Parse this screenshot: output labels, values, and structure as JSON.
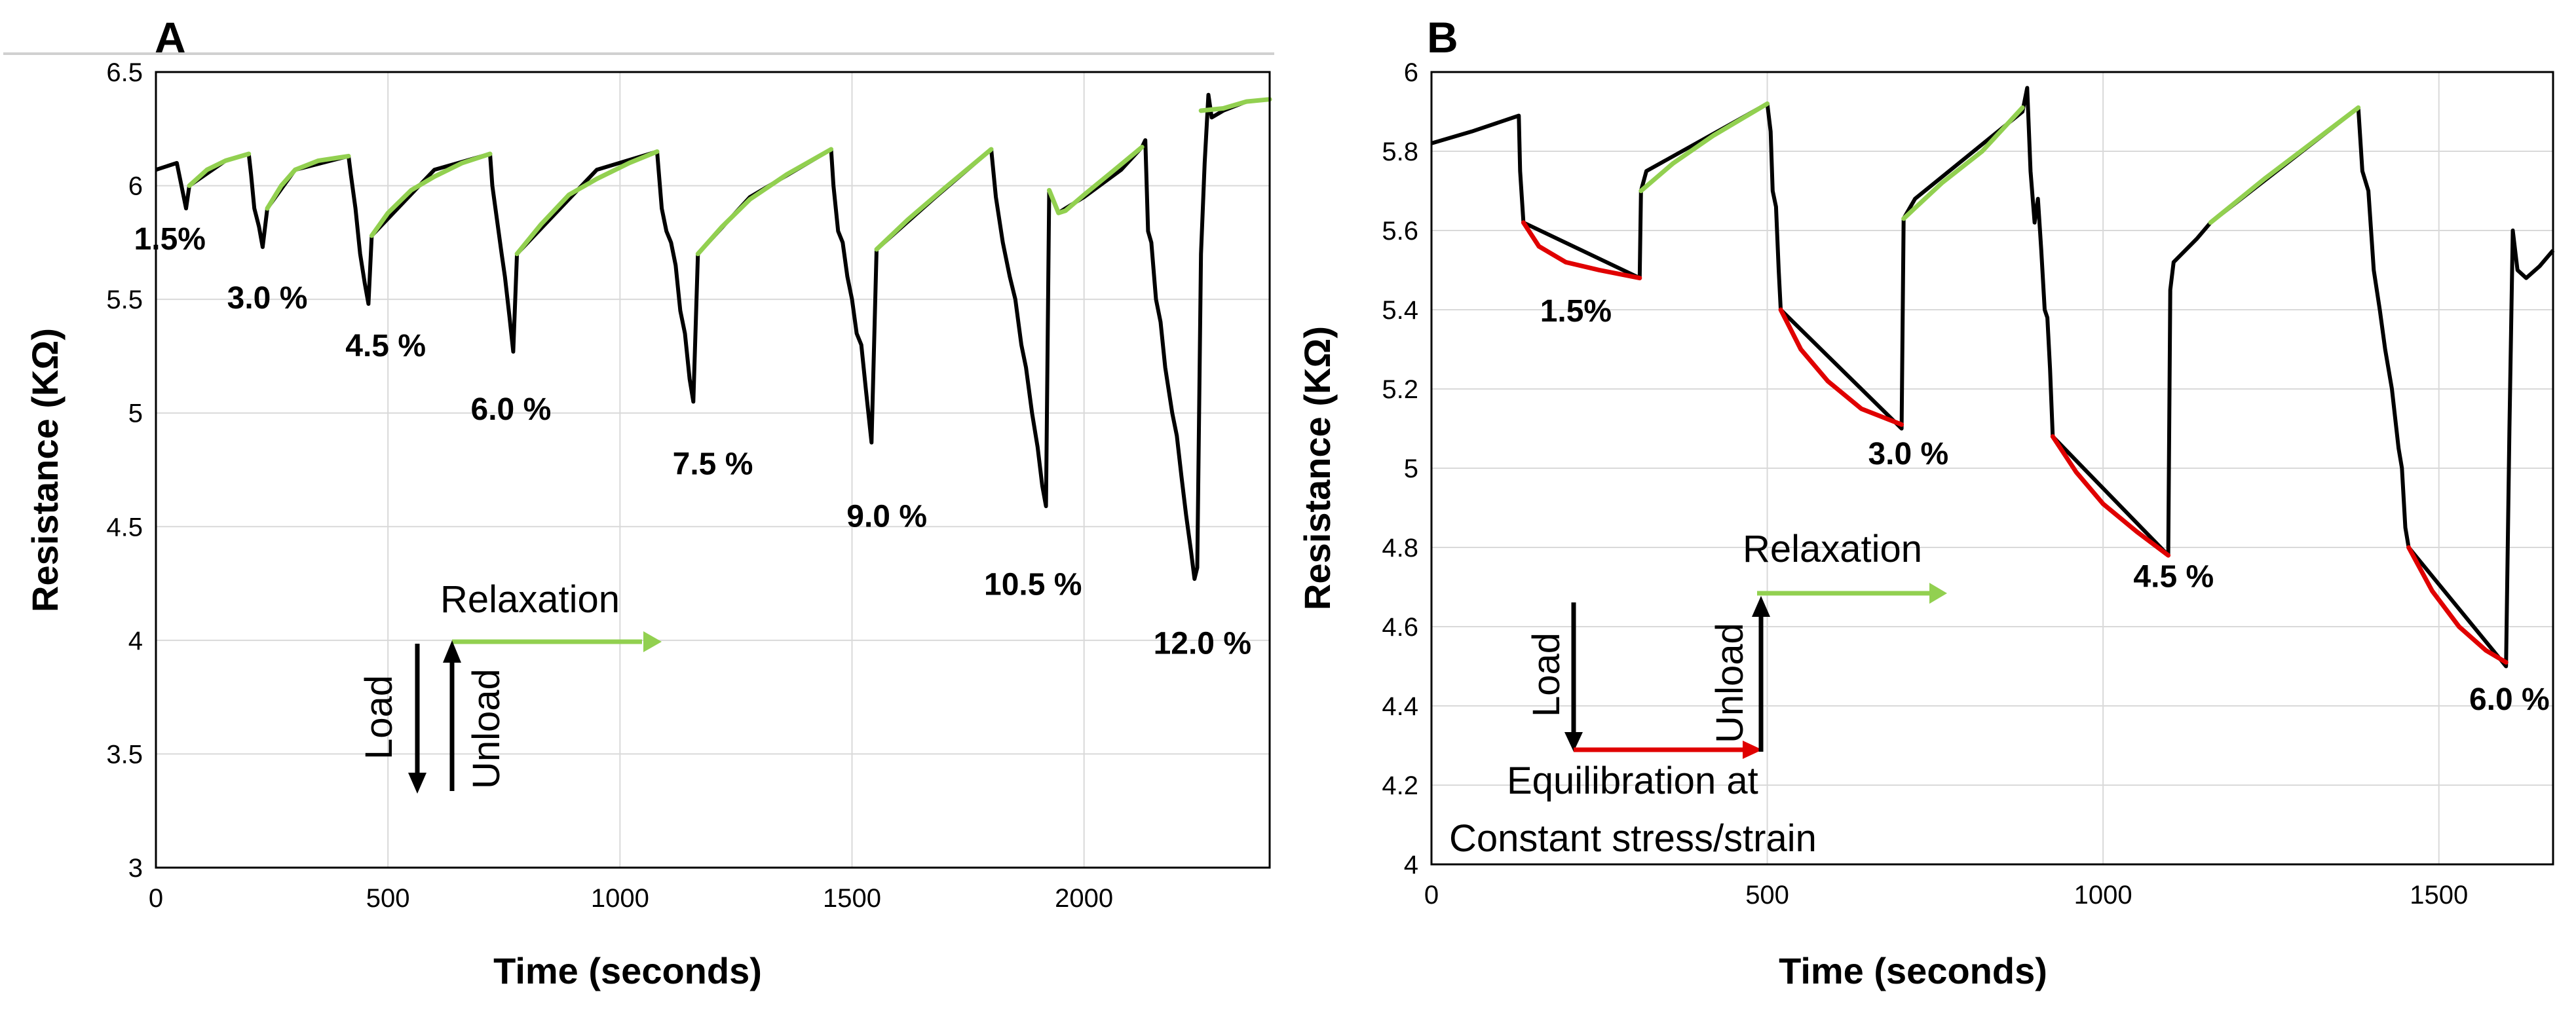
{
  "colors": {
    "load_curve": "#000000",
    "relaxation": "#92D050",
    "equilibration": "#E00000",
    "grid": "#D9D9D9"
  },
  "chart_data": [
    {
      "type": "line",
      "panel_label": "A",
      "xlabel": "Time (seconds)",
      "ylabel": "Resistance (KΩ)",
      "xlim": [
        0,
        2400
      ],
      "ylim": [
        3,
        6.5
      ],
      "x_ticks": [
        0,
        500,
        1000,
        1500,
        2000
      ],
      "y_ticks": [
        "3",
        "3.5",
        "4",
        "4.5",
        "5",
        "5.5",
        "6",
        "6.5"
      ],
      "y_tick_values": [
        3,
        3.5,
        4,
        4.5,
        5,
        5.5,
        6,
        6.5
      ],
      "series": [
        {
          "name": "Resistance",
          "role": "load_unload",
          "points": [
            [
              0,
              6.07
            ],
            [
              45,
              6.1
            ],
            [
              55,
              6.0
            ],
            [
              65,
              5.9
            ],
            [
              72,
              6.0
            ],
            [
              150,
              6.11
            ],
            [
              200,
              6.14
            ],
            [
              205,
              6.05
            ],
            [
              212,
              5.9
            ],
            [
              222,
              5.82
            ],
            [
              230,
              5.73
            ],
            [
              240,
              5.9
            ],
            [
              300,
              6.07
            ],
            [
              415,
              6.13
            ],
            [
              420,
              6.05
            ],
            [
              430,
              5.9
            ],
            [
              440,
              5.7
            ],
            [
              450,
              5.57
            ],
            [
              458,
              5.48
            ],
            [
              465,
              5.78
            ],
            [
              600,
              6.07
            ],
            [
              720,
              6.14
            ],
            [
              725,
              6.0
            ],
            [
              735,
              5.85
            ],
            [
              745,
              5.7
            ],
            [
              752,
              5.6
            ],
            [
              762,
              5.42
            ],
            [
              770,
              5.27
            ],
            [
              778,
              5.7
            ],
            [
              950,
              6.07
            ],
            [
              1080,
              6.15
            ],
            [
              1090,
              5.9
            ],
            [
              1100,
              5.8
            ],
            [
              1110,
              5.75
            ],
            [
              1120,
              5.65
            ],
            [
              1130,
              5.45
            ],
            [
              1140,
              5.35
            ],
            [
              1150,
              5.15
            ],
            [
              1158,
              5.05
            ],
            [
              1168,
              5.7
            ],
            [
              1280,
              5.95
            ],
            [
              1455,
              6.16
            ],
            [
              1460,
              6.0
            ],
            [
              1470,
              5.8
            ],
            [
              1480,
              5.75
            ],
            [
              1490,
              5.6
            ],
            [
              1500,
              5.5
            ],
            [
              1510,
              5.35
            ],
            [
              1520,
              5.3
            ],
            [
              1530,
              5.1
            ],
            [
              1542,
              4.87
            ],
            [
              1553,
              5.72
            ],
            [
              1680,
              5.95
            ],
            [
              1800,
              6.16
            ],
            [
              1810,
              5.95
            ],
            [
              1825,
              5.75
            ],
            [
              1840,
              5.6
            ],
            [
              1852,
              5.5
            ],
            [
              1865,
              5.3
            ],
            [
              1875,
              5.2
            ],
            [
              1888,
              5.0
            ],
            [
              1900,
              4.85
            ],
            [
              1910,
              4.68
            ],
            [
              1918,
              4.59
            ],
            [
              1925,
              5.98
            ],
            [
              1945,
              5.88
            ],
            [
              1960,
              5.9
            ],
            [
              2000,
              5.95
            ],
            [
              2080,
              6.07
            ],
            [
              2125,
              6.17
            ],
            [
              2132,
              6.2
            ],
            [
              2138,
              5.8
            ],
            [
              2145,
              5.75
            ],
            [
              2155,
              5.5
            ],
            [
              2165,
              5.4
            ],
            [
              2175,
              5.2
            ],
            [
              2190,
              5.0
            ],
            [
              2200,
              4.9
            ],
            [
              2210,
              4.72
            ],
            [
              2220,
              4.55
            ],
            [
              2230,
              4.4
            ],
            [
              2238,
              4.27
            ],
            [
              2244,
              4.32
            ],
            [
              2252,
              5.7
            ],
            [
              2260,
              6.1
            ],
            [
              2268,
              6.4
            ],
            [
              2275,
              6.3
            ],
            [
              2300,
              6.33
            ],
            [
              2350,
              6.37
            ],
            [
              2400,
              6.38
            ]
          ]
        },
        {
          "name": "Relaxation",
          "role": "relaxation",
          "segments": [
            [
              [
                72,
                6.0
              ],
              [
                110,
                6.07
              ],
              [
                150,
                6.11
              ],
              [
                200,
                6.14
              ]
            ],
            [
              [
                240,
                5.9
              ],
              [
                270,
                6.0
              ],
              [
                300,
                6.07
              ],
              [
                350,
                6.11
              ],
              [
                415,
                6.13
              ]
            ],
            [
              [
                465,
                5.78
              ],
              [
                500,
                5.88
              ],
              [
                550,
                5.98
              ],
              [
                600,
                6.04
              ],
              [
                660,
                6.1
              ],
              [
                720,
                6.14
              ]
            ],
            [
              [
                778,
                5.7
              ],
              [
                830,
                5.83
              ],
              [
                890,
                5.96
              ],
              [
                950,
                6.03
              ],
              [
                1020,
                6.1
              ],
              [
                1080,
                6.15
              ]
            ],
            [
              [
                1168,
                5.7
              ],
              [
                1220,
                5.82
              ],
              [
                1280,
                5.94
              ],
              [
                1360,
                6.05
              ],
              [
                1455,
                6.16
              ]
            ],
            [
              [
                1553,
                5.72
              ],
              [
                1620,
                5.85
              ],
              [
                1700,
                5.99
              ],
              [
                1800,
                6.16
              ]
            ],
            [
              [
                1925,
                5.98
              ],
              [
                1945,
                5.88
              ],
              [
                1960,
                5.89
              ],
              [
                2000,
                5.96
              ],
              [
                2060,
                6.06
              ],
              [
                2125,
                6.17
              ]
            ],
            [
              [
                2252,
                6.33
              ],
              [
                2300,
                6.34
              ],
              [
                2350,
                6.37
              ],
              [
                2400,
                6.38
              ]
            ]
          ]
        }
      ],
      "annotations": [
        {
          "text": "1.5%",
          "x": 30,
          "y": 5.72
        },
        {
          "text": "3.0 %",
          "x": 240,
          "y": 5.46
        },
        {
          "text": "4.5 %",
          "x": 495,
          "y": 5.25
        },
        {
          "text": "6.0 %",
          "x": 765,
          "y": 4.97
        },
        {
          "text": "7.5 %",
          "x": 1200,
          "y": 4.73
        },
        {
          "text": "9.0 %",
          "x": 1575,
          "y": 4.5
        },
        {
          "text": "10.5 %",
          "x": 1890,
          "y": 4.2
        },
        {
          "text": "12.0 %",
          "x": 2255,
          "y": 3.94
        }
      ],
      "legend": {
        "relaxation_label": "Relaxation",
        "load_label": "Load",
        "unload_label": "Unload"
      }
    },
    {
      "type": "line",
      "panel_label": "B",
      "xlabel": "Time (seconds)",
      "ylabel": "Resistance (KΩ)",
      "xlim": [
        0,
        1670
      ],
      "ylim": [
        4,
        6
      ],
      "x_ticks": [
        0,
        500,
        1000,
        1500
      ],
      "y_ticks": [
        "4",
        "4.2",
        "4.4",
        "4.6",
        "4.8",
        "5",
        "5.2",
        "5.4",
        "5.6",
        "5.8",
        "6"
      ],
      "y_tick_values": [
        4,
        4.2,
        4.4,
        4.6,
        4.8,
        5,
        5.2,
        5.4,
        5.6,
        5.8,
        6
      ],
      "series": [
        {
          "name": "Resistance",
          "role": "load_unload",
          "points": [
            [
              0,
              5.82
            ],
            [
              60,
              5.85
            ],
            [
              130,
              5.89
            ],
            [
              132,
              5.75
            ],
            [
              137,
              5.62
            ],
            [
              310,
              5.48
            ],
            [
              312,
              5.7
            ],
            [
              320,
              5.75
            ],
            [
              500,
              5.92
            ],
            [
              505,
              5.85
            ],
            [
              508,
              5.7
            ],
            [
              513,
              5.66
            ],
            [
              517,
              5.5
            ],
            [
              520,
              5.4
            ],
            [
              700,
              5.1
            ],
            [
              703,
              5.63
            ],
            [
              720,
              5.68
            ],
            [
              880,
              5.9
            ],
            [
              887,
              5.96
            ],
            [
              892,
              5.75
            ],
            [
              898,
              5.62
            ],
            [
              903,
              5.68
            ],
            [
              908,
              5.55
            ],
            [
              913,
              5.4
            ],
            [
              917,
              5.38
            ],
            [
              921,
              5.25
            ],
            [
              925,
              5.08
            ],
            [
              1097,
              4.78
            ],
            [
              1100,
              5.45
            ],
            [
              1105,
              5.52
            ],
            [
              1140,
              5.58
            ],
            [
              1160,
              5.62
            ],
            [
              1380,
              5.91
            ],
            [
              1386,
              5.75
            ],
            [
              1395,
              5.7
            ],
            [
              1403,
              5.5
            ],
            [
              1412,
              5.4
            ],
            [
              1420,
              5.3
            ],
            [
              1430,
              5.2
            ],
            [
              1440,
              5.05
            ],
            [
              1445,
              5.0
            ],
            [
              1450,
              4.85
            ],
            [
              1455,
              4.8
            ],
            [
              1600,
              4.5
            ],
            [
              1605,
              5.1
            ],
            [
              1610,
              5.6
            ],
            [
              1617,
              5.5
            ],
            [
              1630,
              5.48
            ],
            [
              1650,
              5.51
            ],
            [
              1670,
              5.55
            ]
          ]
        },
        {
          "name": "Relaxation",
          "role": "relaxation",
          "segments": [
            [
              [
                312,
                5.7
              ],
              [
                360,
                5.77
              ],
              [
                420,
                5.84
              ],
              [
                500,
                5.92
              ]
            ],
            [
              [
                703,
                5.63
              ],
              [
                760,
                5.72
              ],
              [
                820,
                5.8
              ],
              [
                880,
                5.91
              ]
            ],
            [
              [
                1160,
                5.62
              ],
              [
                1240,
                5.73
              ],
              [
                1310,
                5.82
              ],
              [
                1380,
                5.91
              ]
            ]
          ]
        },
        {
          "name": "Equilibration",
          "role": "equilibration",
          "segments": [
            [
              [
                137,
                5.62
              ],
              [
                160,
                5.56
              ],
              [
                200,
                5.52
              ],
              [
                250,
                5.5
              ],
              [
                310,
                5.48
              ]
            ],
            [
              [
                520,
                5.4
              ],
              [
                550,
                5.3
              ],
              [
                590,
                5.22
              ],
              [
                640,
                5.15
              ],
              [
                700,
                5.11
              ]
            ],
            [
              [
                925,
                5.08
              ],
              [
                960,
                4.99
              ],
              [
                1000,
                4.91
              ],
              [
                1050,
                4.84
              ],
              [
                1097,
                4.78
              ]
            ],
            [
              [
                1455,
                4.8
              ],
              [
                1490,
                4.69
              ],
              [
                1530,
                4.6
              ],
              [
                1570,
                4.54
              ],
              [
                1600,
                4.51
              ]
            ]
          ]
        }
      ],
      "annotations": [
        {
          "text": "1.5%",
          "x": 215,
          "y": 5.37
        },
        {
          "text": "3.0 %",
          "x": 710,
          "y": 5.01
        },
        {
          "text": "4.5 %",
          "x": 1105,
          "y": 4.7
        },
        {
          "text": "6.0 %",
          "x": 1605,
          "y": 4.39
        }
      ],
      "legend": {
        "relaxation_label": "Relaxation",
        "load_label": "Load",
        "unload_label": "Unload",
        "equilibration_label_1": "Equilibration at",
        "equilibration_label_2": "Constant stress/strain"
      }
    }
  ]
}
